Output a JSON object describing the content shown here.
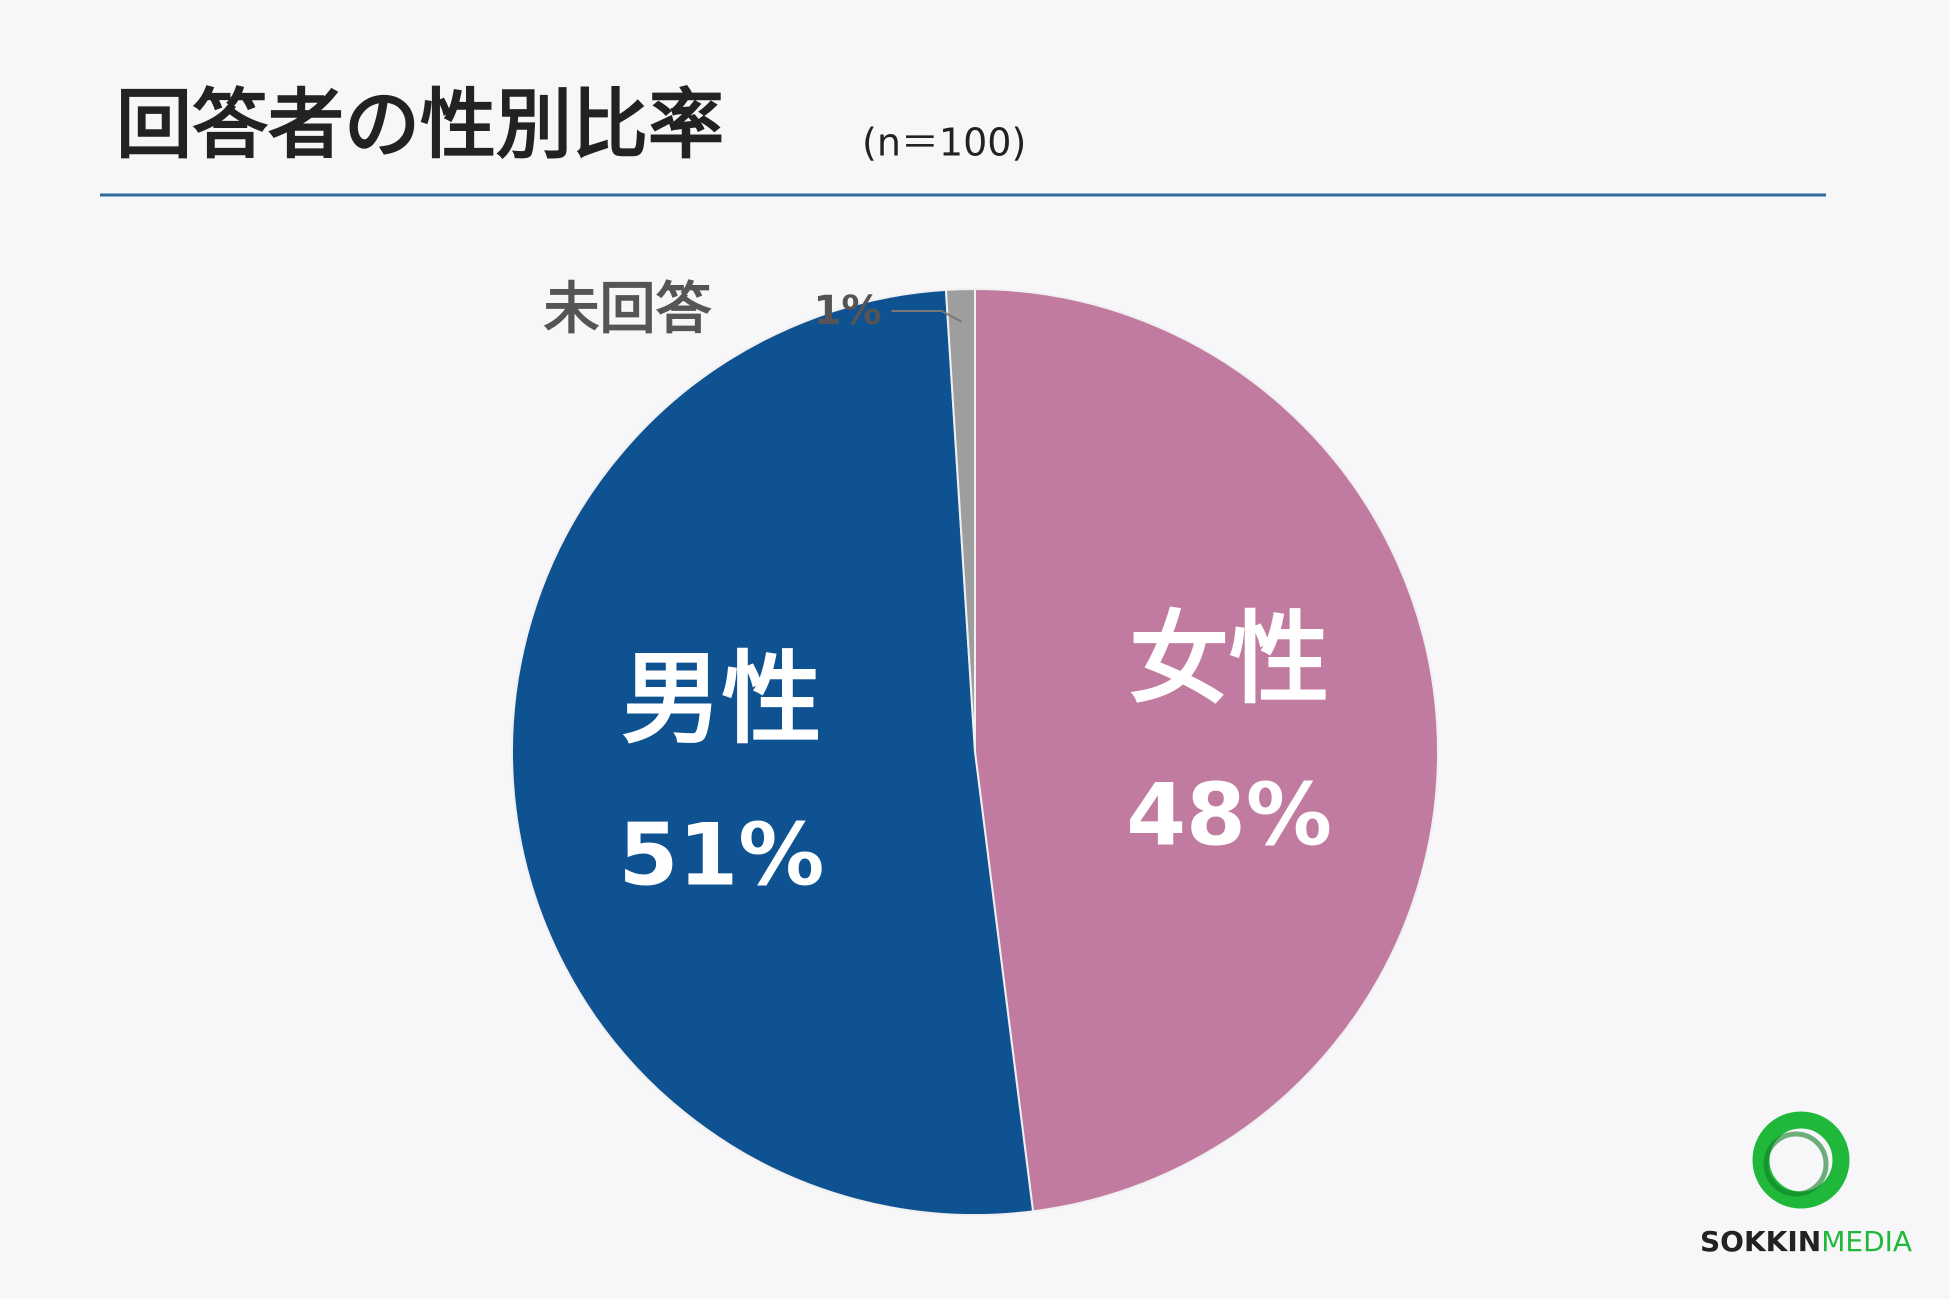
{
  "chart_data": {
    "type": "pie",
    "title": "回答者の性別比率",
    "subtitle": "(n＝100)",
    "categories": [
      "女性",
      "男性",
      "未回答"
    ],
    "values": [
      48,
      51,
      1
    ],
    "value_labels": [
      "48%",
      "51%",
      "1%"
    ],
    "colors": [
      "#c27ba0",
      "#0f5292",
      "#9e9e9e"
    ]
  },
  "logo": {
    "bold": "SOKKIN",
    "light": "MEDIA"
  }
}
